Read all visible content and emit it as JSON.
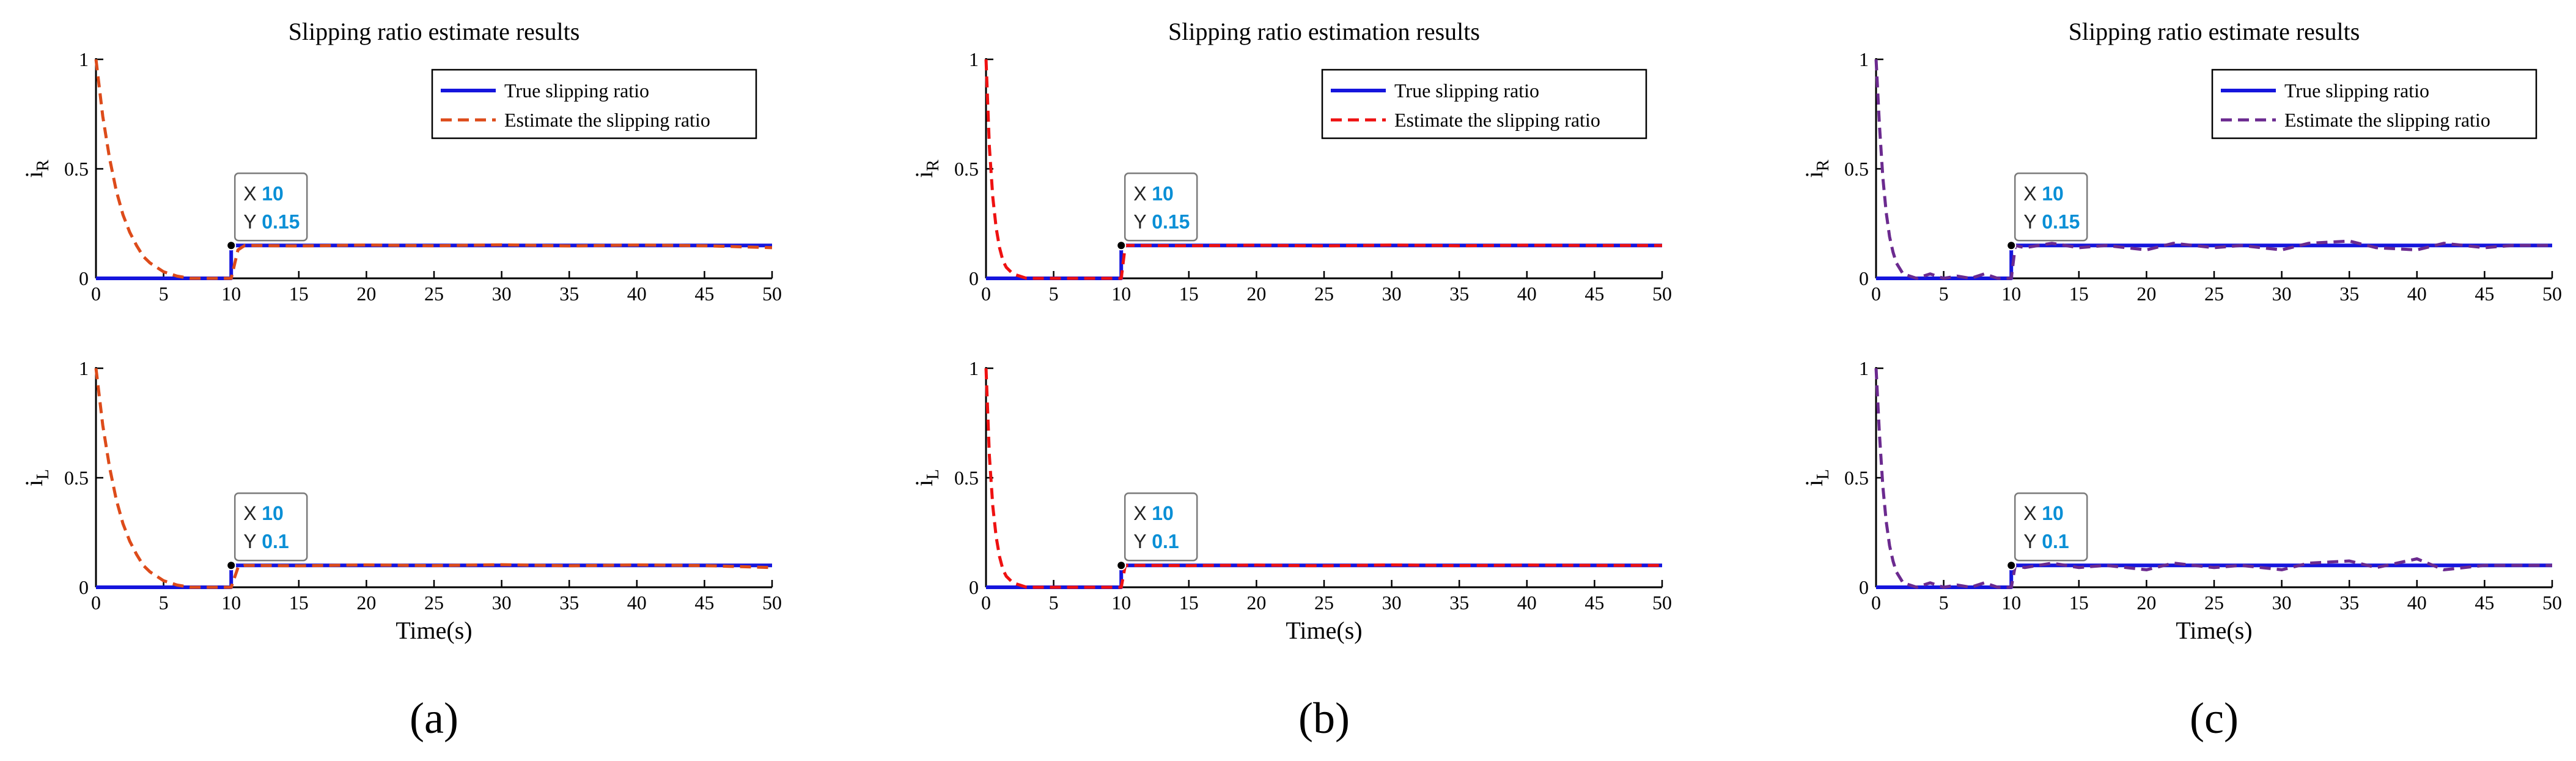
{
  "colors": {
    "true_series": "#1515dd",
    "axis": "#000000",
    "datatip_value": "#0a8fd6",
    "datatip_border": "#7a7a7a"
  },
  "chart_data": [
    {
      "type": "line",
      "label": "(a)",
      "title": "Slipping ratio estimate results",
      "legend": {
        "placement": "top-right",
        "entries": [
          "True slipping ratio",
          "Estimate the slipping ratio"
        ]
      },
      "estimate_color": "#dd4b1a",
      "xlabel": "Time(s)",
      "xlim": [
        0,
        50
      ],
      "xticks": [
        "0",
        "5",
        "10",
        "15",
        "20",
        "25",
        "30",
        "35",
        "40",
        "45",
        "50"
      ],
      "panels": [
        {
          "ylabel": "i",
          "ylabel_sub": "R",
          "ylim": [
            0,
            1
          ],
          "yticks": [
            "0",
            "0.5",
            "1"
          ],
          "series": [
            {
              "name": "True slipping ratio",
              "style": "solid",
              "x": [
                0,
                10,
                10,
                50
              ],
              "y": [
                0,
                0,
                0.15,
                0.15
              ]
            },
            {
              "name": "Estimate the slipping ratio",
              "style": "dashed",
              "x": [
                0,
                0.5,
                1,
                1.5,
                2,
                2.5,
                3,
                3.5,
                4,
                5,
                6,
                7,
                8,
                9,
                10,
                10.5,
                11,
                15,
                20,
                25,
                30,
                35,
                40,
                45,
                50
              ],
              "y": [
                1,
                0.74,
                0.55,
                0.4,
                0.29,
                0.21,
                0.15,
                0.1,
                0.07,
                0.03,
                0.01,
                0.0,
                0.0,
                0.0,
                0.0,
                0.13,
                0.15,
                0.148,
                0.152,
                0.149,
                0.153,
                0.148,
                0.152,
                0.149,
                0.14
              ]
            }
          ],
          "datatip": {
            "x_label": "X",
            "x": "10",
            "y_label": "Y",
            "y": "0.15"
          }
        },
        {
          "ylabel": "i",
          "ylabel_sub": "L",
          "ylim": [
            0,
            1
          ],
          "yticks": [
            "0",
            "0.5",
            "1"
          ],
          "series": [
            {
              "name": "True slipping ratio",
              "style": "solid",
              "x": [
                0,
                10,
                10,
                50
              ],
              "y": [
                0,
                0,
                0.1,
                0.1
              ]
            },
            {
              "name": "Estimate the slipping ratio",
              "style": "dashed",
              "x": [
                0,
                0.5,
                1,
                1.5,
                2,
                2.5,
                3,
                3.5,
                4,
                5,
                6,
                7,
                8,
                9,
                10,
                10.5,
                11,
                15,
                20,
                25,
                30,
                35,
                40,
                45,
                50
              ],
              "y": [
                1,
                0.74,
                0.55,
                0.4,
                0.29,
                0.21,
                0.15,
                0.1,
                0.07,
                0.03,
                0.01,
                0.0,
                0.0,
                0.0,
                0.0,
                0.09,
                0.1,
                0.098,
                0.102,
                0.099,
                0.103,
                0.098,
                0.102,
                0.099,
                0.09
              ]
            }
          ],
          "datatip": {
            "x_label": "X",
            "x": "10",
            "y_label": "Y",
            "y": "0.1"
          }
        }
      ]
    },
    {
      "type": "line",
      "label": "(b)",
      "title": "Slipping ratio estimation results",
      "legend": {
        "placement": "top-right",
        "entries": [
          "True slipping ratio",
          "Estimate the slipping ratio"
        ]
      },
      "estimate_color": "#ee1111",
      "xlabel": "Time(s)",
      "xlim": [
        0,
        50
      ],
      "xticks": [
        "0",
        "5",
        "10",
        "15",
        "20",
        "25",
        "30",
        "35",
        "40",
        "45",
        "50"
      ],
      "panels": [
        {
          "ylabel": "i",
          "ylabel_sub": "R",
          "ylim": [
            0,
            1
          ],
          "yticks": [
            "0",
            "0.5",
            "1"
          ],
          "series": [
            {
              "name": "True slipping ratio",
              "style": "solid",
              "x": [
                0,
                10,
                10,
                50
              ],
              "y": [
                0,
                0,
                0.15,
                0.15
              ]
            },
            {
              "name": "Estimate the slipping ratio",
              "style": "dashed",
              "x": [
                0,
                0.25,
                0.5,
                0.75,
                1,
                1.25,
                1.5,
                2,
                2.5,
                3,
                4,
                5,
                10,
                10.3,
                11,
                15,
                20,
                25,
                30,
                35,
                40,
                45,
                50
              ],
              "y": [
                1,
                0.6,
                0.37,
                0.23,
                0.14,
                0.08,
                0.05,
                0.02,
                0.01,
                0,
                0,
                0,
                0,
                0.15,
                0.15,
                0.149,
                0.151,
                0.148,
                0.152,
                0.149,
                0.151,
                0.15,
                0.15
              ]
            }
          ],
          "datatip": {
            "x_label": "X",
            "x": "10",
            "y_label": "Y",
            "y": "0.15"
          }
        },
        {
          "ylabel": "i",
          "ylabel_sub": "L",
          "ylim": [
            0,
            1
          ],
          "yticks": [
            "0",
            "0.5",
            "1"
          ],
          "series": [
            {
              "name": "True slipping ratio",
              "style": "solid",
              "x": [
                0,
                10,
                10,
                50
              ],
              "y": [
                0,
                0,
                0.1,
                0.1
              ]
            },
            {
              "name": "Estimate the slipping ratio",
              "style": "dashed",
              "x": [
                0,
                0.25,
                0.5,
                0.75,
                1,
                1.25,
                1.5,
                2,
                2.5,
                3,
                4,
                5,
                10,
                10.3,
                11,
                15,
                20,
                25,
                30,
                35,
                40,
                45,
                50
              ],
              "y": [
                1,
                0.6,
                0.37,
                0.23,
                0.14,
                0.08,
                0.05,
                0.02,
                0.01,
                0,
                0,
                0,
                0,
                0.1,
                0.1,
                0.099,
                0.101,
                0.098,
                0.102,
                0.099,
                0.101,
                0.1,
                0.1
              ]
            }
          ],
          "datatip": {
            "x_label": "X",
            "x": "10",
            "y_label": "Y",
            "y": "0.1"
          }
        }
      ]
    },
    {
      "type": "line",
      "label": "(c)",
      "title": "Slipping ratio estimate results",
      "legend": {
        "placement": "top-right",
        "entries": [
          "True slipping ratio",
          "Estimate the slipping ratio"
        ]
      },
      "estimate_color": "#6b2a8f",
      "xlabel": "Time(s)",
      "xlim": [
        0,
        50
      ],
      "xticks": [
        "0",
        "5",
        "10",
        "15",
        "20",
        "25",
        "30",
        "35",
        "40",
        "45",
        "50"
      ],
      "panels": [
        {
          "ylabel": "i",
          "ylabel_sub": "R",
          "ylim": [
            0,
            1
          ],
          "yticks": [
            "0",
            "0.5",
            "1"
          ],
          "series": [
            {
              "name": "True slipping ratio",
              "style": "solid",
              "x": [
                0,
                10,
                10,
                50
              ],
              "y": [
                0,
                0,
                0.15,
                0.15
              ]
            },
            {
              "name": "Estimate the slipping ratio",
              "style": "dashed",
              "x": [
                0,
                0.25,
                0.5,
                0.75,
                1,
                1.25,
                1.5,
                2,
                2.5,
                3,
                4,
                5,
                6,
                7,
                8,
                9,
                10,
                10.3,
                11,
                13,
                15,
                17,
                20,
                22,
                25,
                27,
                30,
                32,
                35,
                37,
                40,
                42,
                45,
                47,
                50
              ],
              "y": [
                1,
                0.7,
                0.46,
                0.3,
                0.19,
                0.12,
                0.07,
                0.02,
                0.01,
                0.0,
                0.02,
                0.0,
                0.01,
                0.0,
                0.02,
                0.0,
                0.0,
                0.15,
                0.14,
                0.16,
                0.14,
                0.15,
                0.13,
                0.16,
                0.14,
                0.15,
                0.13,
                0.16,
                0.17,
                0.14,
                0.13,
                0.16,
                0.14,
                0.15,
                0.15
              ]
            }
          ],
          "datatip": {
            "x_label": "X",
            "x": "10",
            "y_label": "Y",
            "y": "0.15"
          }
        },
        {
          "ylabel": "i",
          "ylabel_sub": "L",
          "ylim": [
            0,
            1
          ],
          "yticks": [
            "0",
            "0.5",
            "1"
          ],
          "series": [
            {
              "name": "True slipping ratio",
              "style": "solid",
              "x": [
                0,
                10,
                10,
                50
              ],
              "y": [
                0,
                0,
                0.1,
                0.1
              ]
            },
            {
              "name": "Estimate the slipping ratio",
              "style": "dashed",
              "x": [
                0,
                0.25,
                0.5,
                0.75,
                1,
                1.25,
                1.5,
                2,
                2.5,
                3,
                4,
                5,
                6,
                7,
                8,
                9,
                10,
                10.3,
                11,
                13,
                15,
                17,
                20,
                22,
                25,
                27,
                30,
                32,
                35,
                37,
                40,
                42,
                45,
                47,
                50
              ],
              "y": [
                1,
                0.7,
                0.46,
                0.3,
                0.19,
                0.12,
                0.07,
                0.02,
                0.01,
                0.0,
                0.02,
                0.0,
                0.01,
                0.0,
                0.02,
                0.0,
                0.0,
                0.1,
                0.09,
                0.11,
                0.09,
                0.1,
                0.08,
                0.11,
                0.09,
                0.1,
                0.08,
                0.11,
                0.12,
                0.09,
                0.13,
                0.08,
                0.1,
                0.1,
                0.1
              ]
            }
          ],
          "datatip": {
            "x_label": "X",
            "x": "10",
            "y_label": "Y",
            "y": "0.1"
          }
        }
      ]
    }
  ]
}
